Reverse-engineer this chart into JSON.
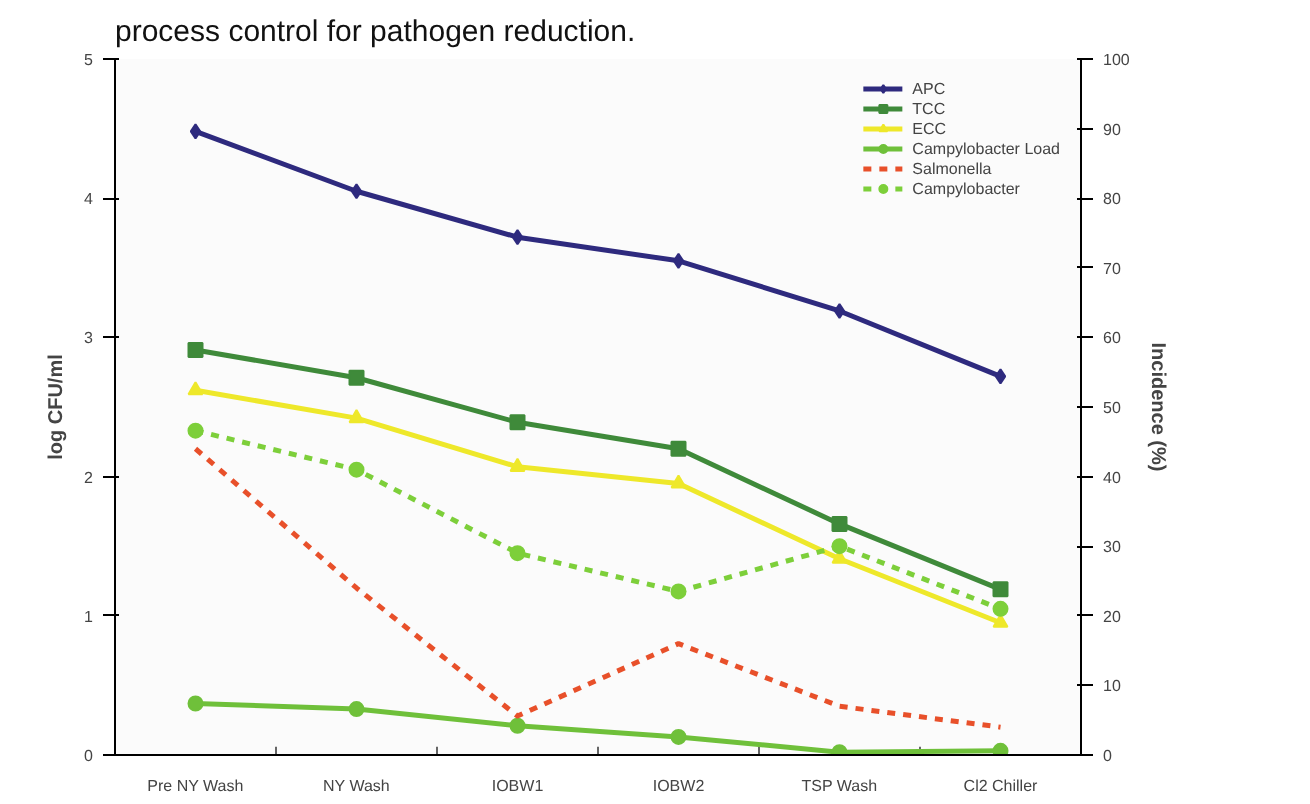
{
  "chart_data": {
    "type": "line",
    "annotations": [
      "process control for pathogen reduction."
    ],
    "ylabel": "log CFU/ml",
    "y2label": "Incidence (%)",
    "categories": [
      "Pre NY Wash",
      "NY Wash",
      "IOBW1",
      "IOBW2",
      "TSP Wash",
      "Cl2 Chiller"
    ],
    "ylim": [
      0,
      5
    ],
    "yticks": [
      0,
      1,
      2,
      3,
      4,
      5
    ],
    "y2lim": [
      0,
      100
    ],
    "y2ticks": [
      0,
      10,
      20,
      30,
      40,
      50,
      60,
      70,
      80,
      90,
      100
    ],
    "grid": false,
    "legend": "top right",
    "series": [
      {
        "name": "APC",
        "color": "#2e2a7e",
        "marker": "diamond",
        "line_style": "solid",
        "values": [
          4.48,
          4.05,
          3.72,
          3.55,
          3.19,
          2.72
        ]
      },
      {
        "name": "TCC",
        "color": "#3f8a3a",
        "marker": "square",
        "line_style": "solid",
        "values": [
          2.91,
          2.71,
          2.39,
          2.2,
          1.66,
          1.19
        ]
      },
      {
        "name": "ECC",
        "color": "#eee82a",
        "marker": "triangle",
        "line_style": "solid",
        "values": [
          2.62,
          2.42,
          2.07,
          1.95,
          1.41,
          0.95
        ]
      },
      {
        "name": "Campylobacter Load",
        "color": "#6fc03a",
        "marker": "circle",
        "line_style": "solid",
        "values": [
          0.37,
          0.33,
          0.21,
          0.13,
          0.02,
          0.03
        ]
      },
      {
        "name": "Salmonella",
        "color": "#e8502a",
        "marker": "none",
        "line_style": "dashed",
        "axis": "y2",
        "values": [
          44,
          24,
          5.6,
          16,
          7,
          4
        ]
      },
      {
        "name": "Campylobacter",
        "color": "#7dcf3a",
        "marker": "circle",
        "line_style": "dashed",
        "axis": "y2",
        "values": [
          46.6,
          41,
          29,
          23.5,
          30,
          21
        ]
      }
    ]
  }
}
